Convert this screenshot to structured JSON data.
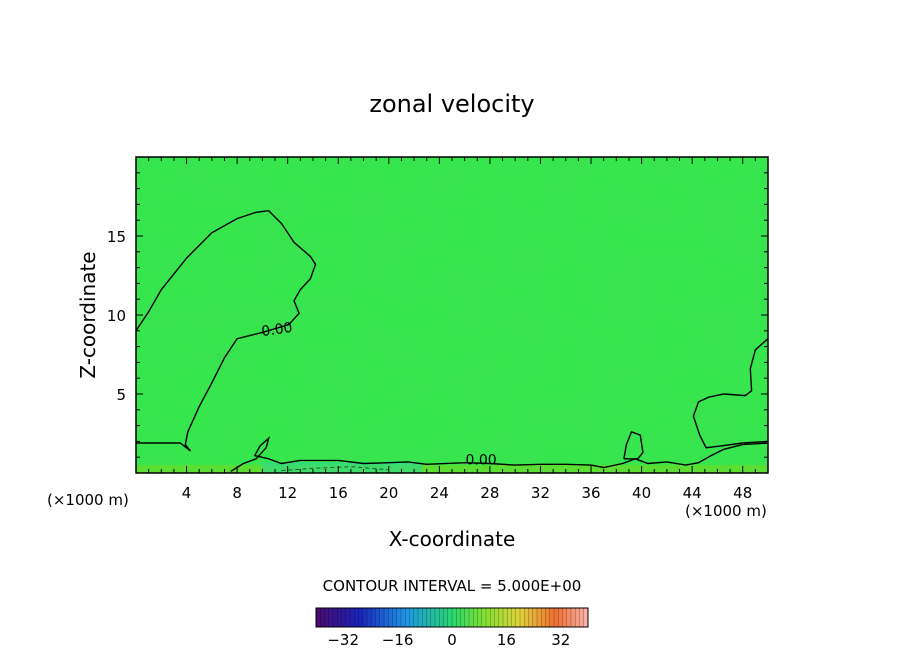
{
  "chart_data": {
    "type": "heatmap",
    "title": "zonal velocity",
    "xlabel": "X-coordinate",
    "ylabel": "Z-coordinate",
    "x_unit_left": "(×1000 m)",
    "x_unit_right": "(×1000 m)",
    "xlim": [
      0,
      50
    ],
    "ylim": [
      0,
      20
    ],
    "xticks": [
      4,
      8,
      12,
      16,
      20,
      24,
      28,
      32,
      36,
      40,
      44,
      48
    ],
    "xtick_labels": [
      "4",
      "8",
      "12",
      "16",
      "20",
      "24",
      "28",
      "32",
      "36",
      "40",
      "44",
      "48"
    ],
    "yticks": [
      5,
      10,
      15
    ],
    "ytick_labels": [
      "5",
      "10",
      "15"
    ],
    "contour_label_upper": "0.00",
    "contour_label_lower": "0.00",
    "contour_interval_text": "CONTOUR INTERVAL = 5.000E+00",
    "colorbar": {
      "min": -40,
      "max": 40,
      "ticks": [
        -32,
        -16,
        0,
        16,
        32
      ],
      "tick_labels": [
        "−32",
        "−16",
        "0",
        "16",
        "32"
      ]
    },
    "field_color": "#33e94a",
    "contours": [
      {
        "name": "zero-contour-left",
        "points": [
          [
            0,
            9
          ],
          [
            1,
            10.2
          ],
          [
            2,
            11.6
          ],
          [
            4,
            13.6
          ],
          [
            6,
            15.2
          ],
          [
            8,
            16.1
          ],
          [
            9.5,
            16.5
          ],
          [
            10.5,
            16.6
          ],
          [
            11.5,
            15.8
          ],
          [
            12.5,
            14.6
          ],
          [
            13.8,
            13.7
          ],
          [
            14.2,
            13.2
          ],
          [
            13.8,
            12.3
          ],
          [
            13,
            11.6
          ],
          [
            12.5,
            10.9
          ],
          [
            12.9,
            10.1
          ],
          [
            12.1,
            9.4
          ],
          [
            10,
            8.9
          ],
          [
            8,
            8.5
          ],
          [
            7,
            7.3
          ],
          [
            6,
            5.7
          ],
          [
            5,
            4.2
          ],
          [
            4.1,
            2.6
          ],
          [
            3.9,
            1.8
          ],
          [
            4.3,
            1.4
          ],
          [
            3.5,
            1.9
          ],
          [
            2,
            1.9
          ],
          [
            0,
            1.9
          ]
        ]
      },
      {
        "name": "zero-contour-surface",
        "points": [
          [
            7.5,
            0.1
          ],
          [
            8.5,
            0.6
          ],
          [
            9.5,
            0.9
          ],
          [
            10.3,
            1.6
          ],
          [
            10.5,
            2.2
          ],
          [
            9.8,
            1.7
          ],
          [
            9.4,
            1.1
          ],
          [
            10.5,
            0.9
          ],
          [
            11.5,
            0.6
          ],
          [
            13,
            0.8
          ],
          [
            16,
            0.8
          ],
          [
            18,
            0.6
          ],
          [
            20,
            0.65
          ],
          [
            21.5,
            0.7
          ],
          [
            23,
            0.55
          ],
          [
            26,
            0.65
          ],
          [
            28,
            0.6
          ],
          [
            30,
            0.5
          ],
          [
            32,
            0.55
          ],
          [
            34,
            0.55
          ],
          [
            36,
            0.5
          ],
          [
            37,
            0.35
          ],
          [
            38.5,
            0.6
          ],
          [
            39.5,
            0.9
          ],
          [
            40.5,
            0.6
          ],
          [
            42,
            0.7
          ],
          [
            43.5,
            0.5
          ],
          [
            44.5,
            0.65
          ],
          [
            45.5,
            1.1
          ],
          [
            46.5,
            1.5
          ],
          [
            48,
            1.8
          ],
          [
            50,
            1.9
          ]
        ]
      },
      {
        "name": "zero-contour-right",
        "points": [
          [
            50,
            8.5
          ],
          [
            49,
            7.8
          ],
          [
            48.6,
            6.6
          ],
          [
            48.7,
            5.2
          ],
          [
            48.2,
            4.9
          ],
          [
            46.5,
            5
          ],
          [
            45.3,
            4.8
          ],
          [
            44.5,
            4.5
          ],
          [
            44.1,
            3.6
          ],
          [
            44.6,
            2.4
          ],
          [
            45.1,
            1.6
          ],
          [
            46.2,
            1.7
          ],
          [
            48,
            1.9
          ],
          [
            50,
            2
          ]
        ]
      },
      {
        "name": "zero-contour-bump40",
        "points": [
          [
            38.6,
            0.9
          ],
          [
            38.8,
            1.8
          ],
          [
            39.2,
            2.6
          ],
          [
            39.9,
            2.4
          ],
          [
            40.1,
            1.3
          ],
          [
            39.7,
            0.9
          ],
          [
            39,
            0.9
          ],
          [
            38.6,
            0.9
          ]
        ]
      }
    ],
    "dashed_contour": {
      "name": "negative-contour",
      "points": [
        [
          11.5,
          0.15
        ],
        [
          14,
          0.3
        ],
        [
          17,
          0.4
        ],
        [
          20,
          0.2
        ]
      ]
    },
    "upper_label_pos": [
      11.2,
      8.8
    ],
    "lower_label_pos": [
      27.3,
      0.55
    ]
  }
}
